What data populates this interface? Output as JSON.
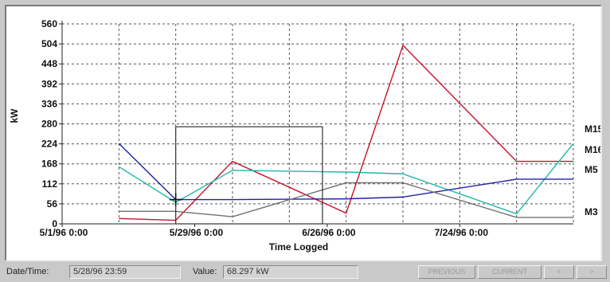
{
  "chart_data": {
    "type": "line",
    "title": "",
    "xlabel": "Time Logged",
    "ylabel": "kW",
    "ylim": [
      0,
      560
    ],
    "y_ticks": [
      0,
      56,
      112,
      168,
      224,
      280,
      336,
      392,
      448,
      504,
      560
    ],
    "y_tick_labels": [
      "0",
      "56",
      "112",
      "168",
      "224",
      "280",
      "336",
      "392",
      "448",
      "504",
      "560"
    ],
    "x_ticks": [
      "5/1/96 0:00",
      "5/29/96 0:00",
      "6/26/96 0:00",
      "7/24/96 0:00"
    ],
    "x_tick_positions": [
      0,
      28,
      56,
      84
    ],
    "xlim": [
      0,
      108
    ],
    "grid": true,
    "legend": "right-end-labels",
    "x": [
      12,
      24,
      36,
      60,
      72,
      96,
      108
    ],
    "series": [
      {
        "name": "M15",
        "color": "#c8102e",
        "values": [
          15,
          10,
          175,
          30,
          500,
          175,
          175
        ]
      },
      {
        "name": "M16",
        "color": "#1fb8a8",
        "values": [
          160,
          60,
          150,
          145,
          140,
          28,
          225
        ]
      },
      {
        "name": "M5",
        "color": "#2020a0",
        "values": [
          225,
          68,
          68,
          70,
          75,
          125,
          125
        ]
      },
      {
        "name": "M3",
        "color": "#707070",
        "values": [
          35,
          35,
          20,
          115,
          115,
          18,
          18
        ]
      }
    ],
    "selection_box": {
      "x0": 24,
      "x1": 55,
      "y0": 0,
      "y1": 272
    },
    "cursor": {
      "x": 24,
      "y": 68
    }
  },
  "status": {
    "datetime_label": "Date/Time:",
    "datetime_value": "5/28/96 23:59",
    "value_label": "Value:",
    "value_value": "68.297 kW"
  },
  "nav_buttons": [
    "PREVIOUS",
    "CURRENT",
    "<",
    ">"
  ]
}
